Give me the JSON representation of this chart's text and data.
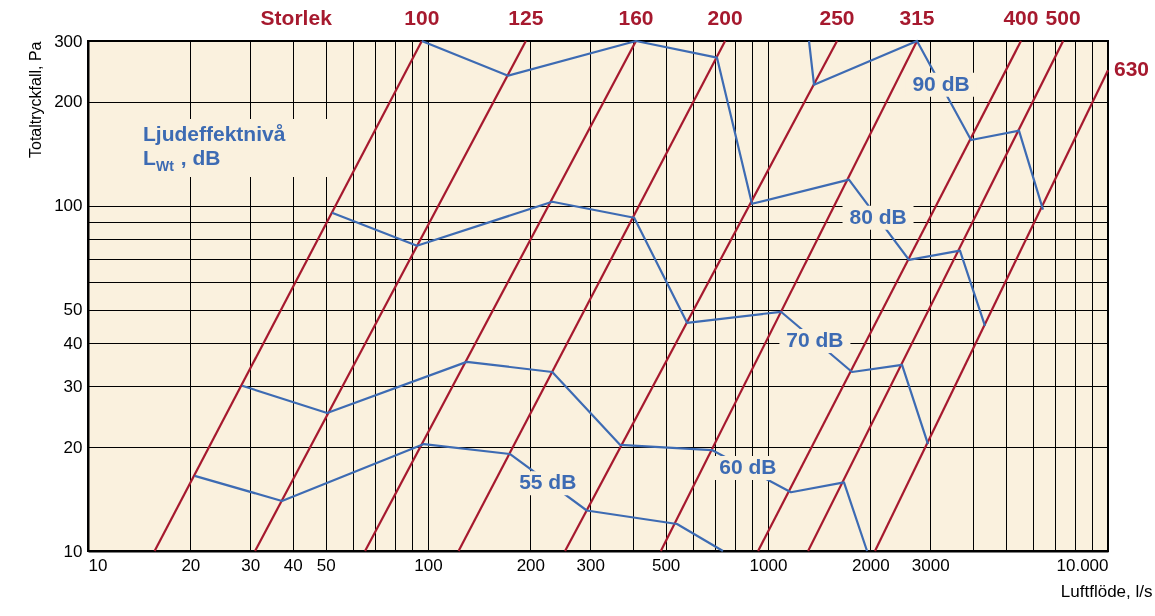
{
  "chart_data": {
    "type": "line",
    "xlabel": "Luftflöde, l/s",
    "ylabel": "Totaltryckfall, Pa",
    "legend_title": "Storlek",
    "log": "xy",
    "grid": true,
    "legend": false,
    "marker": "none",
    "line_style": "solid",
    "xlim": [
      10,
      10000
    ],
    "ylim": [
      10,
      300
    ],
    "xticks": [
      10,
      20,
      30,
      40,
      50,
      {
        "value": 60,
        "label": null
      },
      {
        "value": 70,
        "label": null
      },
      {
        "value": 80,
        "label": null
      },
      {
        "value": 90,
        "label": null
      },
      100,
      200,
      300,
      {
        "value": 400,
        "label": null
      },
      500,
      {
        "value": 600,
        "label": null
      },
      {
        "value": 700,
        "label": null
      },
      {
        "value": 800,
        "label": null
      },
      {
        "value": 900,
        "label": null
      },
      1000,
      2000,
      3000,
      {
        "value": 4000,
        "label": null
      },
      {
        "value": 5000,
        "label": null
      },
      {
        "value": 6000,
        "label": null
      },
      {
        "value": 7000,
        "label": null
      },
      {
        "value": 8000,
        "label": null
      },
      {
        "value": 9000,
        "label": null
      },
      {
        "value": 10000,
        "label": "10.000"
      }
    ],
    "yticks": [
      10,
      20,
      30,
      40,
      50,
      {
        "value": 60,
        "label": null
      },
      {
        "value": 70,
        "label": null
      },
      {
        "value": 80,
        "label": null
      },
      {
        "value": 90,
        "label": null
      },
      100,
      200,
      300
    ],
    "series": [
      {
        "name": "100",
        "color": "#a6192e",
        "x": [
          15.7,
          95.9
        ],
        "values": [
          10,
          300
        ]
      },
      {
        "name": "125",
        "color": "#a6192e",
        "type": "line",
        "x": [
          31.0,
          194
        ],
        "values": [
          10,
          300
        ]
      },
      {
        "name": "160",
        "color": "#a6192e",
        "type": "line",
        "x": [
          65.3,
          409
        ],
        "values": [
          10,
          300
        ]
      },
      {
        "name": "200",
        "color": "#a6192e",
        "type": "line",
        "x": [
          123,
          748
        ],
        "values": [
          10,
          300
        ]
      },
      {
        "name": "250",
        "color": "#a6192e",
        "type": "line",
        "x": [
          253,
          1596
        ],
        "values": [
          10,
          300
        ]
      },
      {
        "name": "315",
        "color": "#a6192e",
        "type": "line",
        "x": [
          484,
          2743
        ],
        "values": [
          10,
          300
        ]
      },
      {
        "name": "400",
        "color": "#a6192e",
        "type": "line",
        "x": [
          935,
          5546
        ],
        "values": [
          10,
          300
        ]
      },
      {
        "name": "500",
        "color": "#a6192e",
        "type": "line",
        "x": [
          1312,
          7379
        ],
        "values": [
          10,
          300
        ]
      },
      {
        "name": "630",
        "color": "#a6192e",
        "type": "line",
        "x": [
          2064,
          10000
        ],
        "values": [
          10,
          247
        ]
      },
      {
        "color": "#3d6bb3",
        "type": "line",
        "x": [
          20.6,
          37.2,
          97.3,
          174,
          293,
          540,
          737
        ],
        "values": [
          16.5,
          13.96,
          20.4,
          19.1,
          13.1,
          11.97,
          10
        ]
      },
      {
        "color": "#3d6bb3",
        "type": "line",
        "x": [
          28.4,
          50.5,
          130,
          232,
          367,
          684,
          1168,
          1673,
          1956
        ],
        "values": [
          30.1,
          25.1,
          35.3,
          33.0,
          20.3,
          19.6,
          14.8,
          15.8,
          10
        ]
      },
      {
        "color": "#3d6bb3",
        "type": "line",
        "x": [
          52.2,
          92.8,
          232,
          404,
          578,
          1092,
          1767,
          2479,
          2955
        ],
        "values": [
          95.4,
          76.6,
          102.7,
          92.3,
          45.8,
          49.3,
          33.0,
          34.6,
          20.4
        ]
      },
      {
        "color": "#3d6bb3",
        "type": "line",
        "x": [
          95.9,
          172,
          409,
          708,
          897,
          1730,
          2598,
          3670,
          4347
        ],
        "values": [
          300,
          238,
          300,
          268.5,
          101.3,
          119,
          69.7,
          74.1,
          44.9
        ]
      },
      {
        "color": "#3d6bb3",
        "type": "line",
        "x": [
          1320,
          1366,
          2743,
          3955,
          5472,
          6439
        ],
        "values": [
          300,
          224,
          300,
          155,
          165,
          97.4
        ]
      }
    ],
    "annotations": [
      "Ljudeffektnivå\nL$_{Wt}$ , dB",
      {
        "text": "55 dB",
        "x": 225,
        "y": 15.7
      },
      {
        "text": "60 dB",
        "x": 873,
        "y": 17.4
      },
      {
        "text": "70 dB",
        "x": 1374,
        "y": 40.6
      },
      {
        "text": "80 dB",
        "x": 2107,
        "y": 92.3
      },
      {
        "text": "90 dB",
        "x": 3228,
        "y": 224
      }
    ]
  }
}
